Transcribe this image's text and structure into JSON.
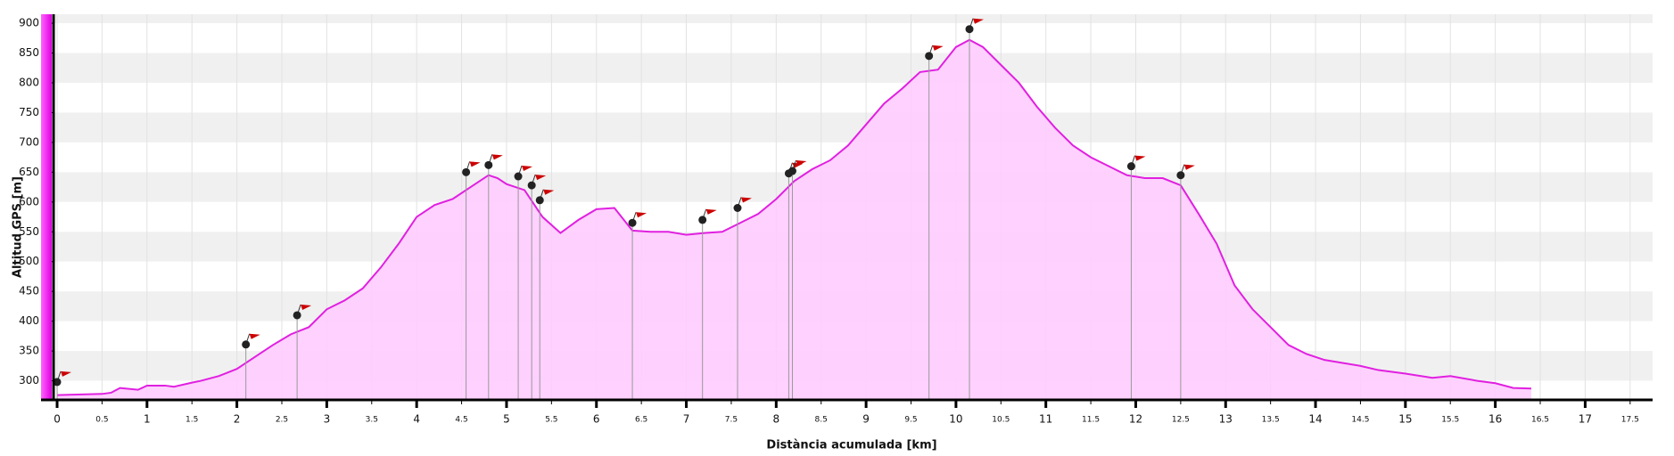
{
  "chart_data": {
    "type": "area",
    "x_label": "Distància acumulada [km]",
    "y_label": "Altitud GPS [m]",
    "xlim": [
      -0.04,
      17.75
    ],
    "ylim": [
      268,
      915
    ],
    "xticks": [
      0,
      0.5,
      1,
      1.5,
      2,
      2.5,
      3,
      3.5,
      4,
      4.5,
      5,
      5.5,
      6,
      6.5,
      7,
      7.5,
      8,
      8.5,
      9,
      9.5,
      10,
      10.5,
      11,
      11.5,
      12,
      12.5,
      13,
      13.5,
      14,
      14.5,
      15,
      15.5,
      16,
      16.5,
      17,
      17.5
    ],
    "yticks": [
      300,
      350,
      400,
      450,
      500,
      550,
      600,
      650,
      700,
      750,
      800,
      850,
      900
    ],
    "grid": true,
    "series": [
      {
        "type": "area",
        "color": "#e020e0",
        "fill": "#ffccff",
        "x": [
          0,
          0.5,
          0.6,
          0.7,
          0.9,
          1.0,
          1.2,
          1.3,
          1.5,
          1.6,
          1.8,
          2.0,
          2.2,
          2.4,
          2.6,
          2.8,
          3.0,
          3.2,
          3.4,
          3.6,
          3.8,
          4.0,
          4.2,
          4.4,
          4.6,
          4.8,
          4.9,
          5.0,
          5.2,
          5.4,
          5.6,
          5.8,
          6.0,
          6.2,
          6.4,
          6.6,
          6.8,
          7.0,
          7.2,
          7.4,
          7.6,
          7.8,
          8.0,
          8.2,
          8.4,
          8.6,
          8.8,
          9.0,
          9.2,
          9.4,
          9.6,
          9.8,
          10.0,
          10.15,
          10.3,
          10.5,
          10.7,
          10.9,
          11.1,
          11.3,
          11.5,
          11.7,
          11.9,
          12.1,
          12.3,
          12.5,
          12.7,
          12.9,
          13.1,
          13.3,
          13.5,
          13.7,
          13.9,
          14.1,
          14.3,
          14.5,
          14.7,
          15.0,
          15.3,
          15.5,
          15.8,
          16.0,
          16.2,
          16.4
        ],
        "values": [
          276,
          278,
          280,
          288,
          285,
          292,
          292,
          290,
          297,
          300,
          308,
          320,
          340,
          360,
          378,
          390,
          420,
          435,
          455,
          490,
          530,
          575,
          595,
          605,
          625,
          645,
          640,
          630,
          620,
          575,
          548,
          570,
          588,
          590,
          552,
          550,
          550,
          545,
          548,
          550,
          565,
          580,
          605,
          635,
          655,
          670,
          695,
          730,
          765,
          790,
          818,
          822,
          860,
          872,
          860,
          830,
          800,
          760,
          725,
          695,
          675,
          660,
          645,
          640,
          640,
          628,
          580,
          530,
          460,
          420,
          390,
          360,
          345,
          335,
          330,
          325,
          318,
          312,
          305,
          308,
          300,
          296,
          288,
          287
        ]
      },
      {
        "type": "scatter",
        "color": "#222222",
        "flag_color": "#cc0000",
        "x": [
          0,
          2.1,
          2.67,
          4.55,
          4.8,
          5.13,
          5.28,
          5.37,
          6.4,
          7.18,
          7.57,
          8.14,
          8.18,
          9.7,
          10.15,
          11.95,
          12.5
        ],
        "values": [
          298,
          361,
          410,
          650,
          662,
          643,
          628,
          603,
          565,
          570,
          590,
          648,
          652,
          845,
          890,
          660,
          645
        ]
      }
    ]
  }
}
